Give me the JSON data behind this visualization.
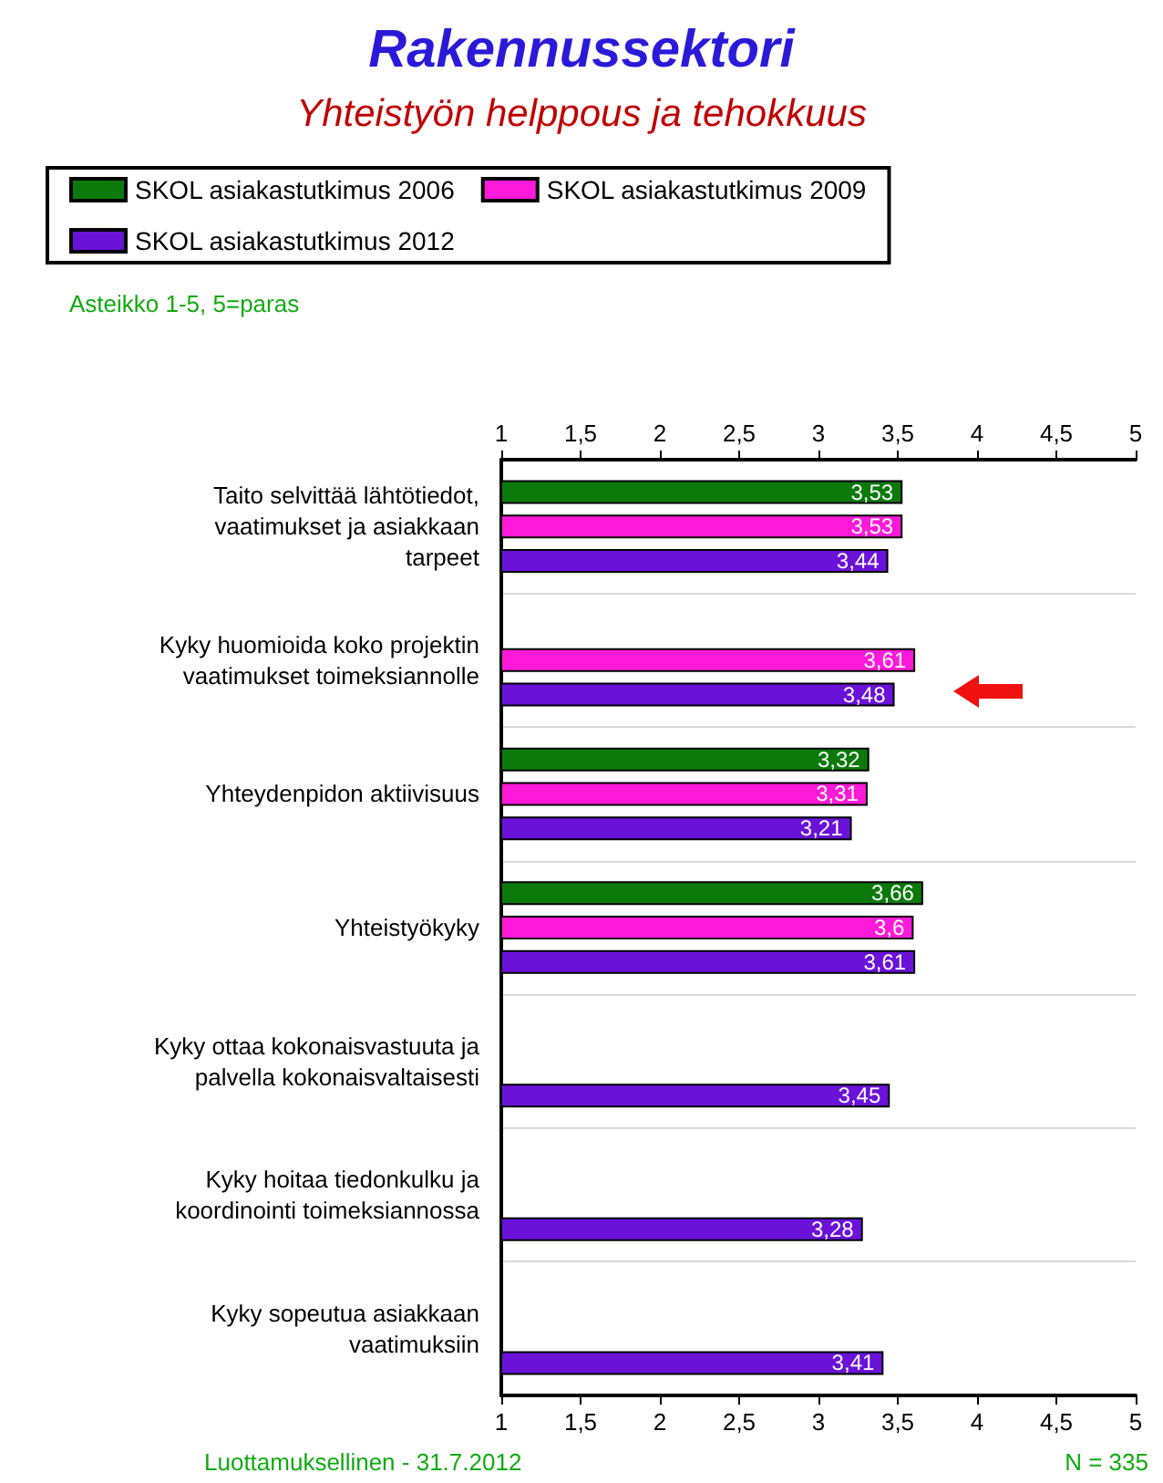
{
  "chart_data": {
    "type": "bar",
    "orientation": "horizontal",
    "title": "Rakennussektori",
    "subtitle": "Yhteistyön helppous ja tehokkuus",
    "categories": [
      "Taito selvittää lähtötiedot,\nvaatimukset ja asiakkaan\ntarpeet",
      "Kyky huomioida koko projektin\nvaatimukset toimeksiannolle",
      "Yhteydenpidon aktiivisuus",
      "Yhteistyökyky",
      "Kyky ottaa kokonaisvastuuta ja\npalvella kokonaisvaltaisesti",
      "Kyky hoitaa tiedonkulku ja\nkoordinointi toimeksiannossa",
      "Kyky sopeutua asiakkaan\nvaatimuksiin"
    ],
    "series": [
      {
        "name": "SKOL asiakastutkimus 2006",
        "color": "#0b7a0b",
        "values": [
          3.53,
          null,
          3.32,
          3.66,
          null,
          null,
          null
        ],
        "value_labels": [
          "3,53",
          null,
          "3,32",
          "3,66",
          null,
          null,
          null
        ]
      },
      {
        "name": "SKOL asiakastutkimus 2009",
        "color": "#ff1ad9",
        "values": [
          3.53,
          3.61,
          3.31,
          3.6,
          null,
          null,
          null
        ],
        "value_labels": [
          "3,53",
          "3,61",
          "3,31",
          "3,6",
          null,
          null,
          null
        ]
      },
      {
        "name": "SKOL asiakastutkimus 2012",
        "color": "#6a12d8",
        "values": [
          3.44,
          3.48,
          3.21,
          3.61,
          3.45,
          3.28,
          3.41
        ],
        "value_labels": [
          "3,44",
          "3,48",
          "3,21",
          "3,61",
          "3,45",
          "3,28",
          "3,41"
        ]
      }
    ],
    "xlim": [
      1,
      5
    ],
    "xticks": [
      1,
      {
        "value": 1.5,
        "label": "1,5"
      },
      2,
      {
        "value": 2.5,
        "label": "2,5"
      },
      3,
      {
        "value": 3.5,
        "label": "3,5"
      },
      4,
      {
        "value": 4.5,
        "label": "4,5"
      },
      5
    ],
    "x2lim": [
      1,
      5
    ],
    "x2ticks": [
      1,
      {
        "value": 1.5,
        "label": "1,5"
      },
      2,
      {
        "value": 2.5,
        "label": "2,5"
      },
      3,
      {
        "value": 3.5,
        "label": "3,5"
      },
      4,
      {
        "value": 4.5,
        "label": "4,5"
      },
      5
    ],
    "grid": "y",
    "legend": "top",
    "annotations": [
      "Asteikko 1-5, 5=paras",
      "Luottamuksellinen - 31.7.2012",
      "N = 335"
    ]
  }
}
